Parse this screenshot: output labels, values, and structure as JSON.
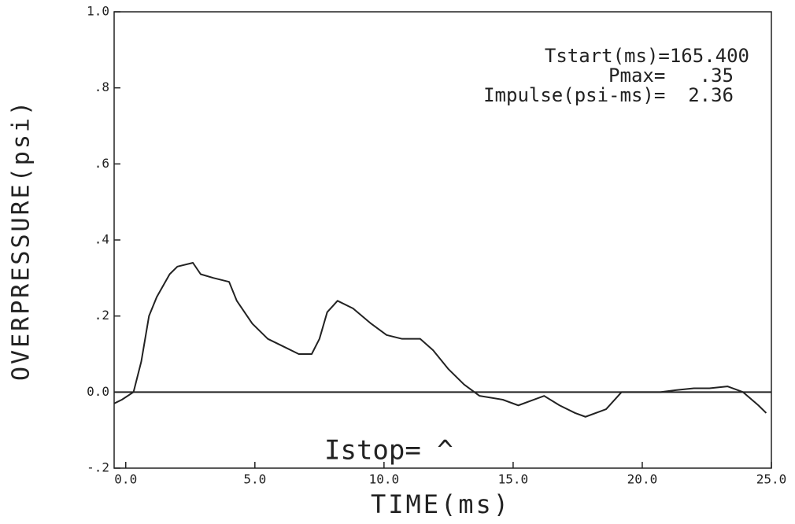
{
  "chart_data": {
    "type": "line",
    "x_label": "TIME(ms)",
    "y_label": "OVERPRESSURE(psi)",
    "annotations": [
      "Tstart(ms)=165.400",
      "Pmax=   .35",
      "Impulse(psi-ms)=  2.36",
      "Istop= ^"
    ],
    "xlim": [
      -0.45,
      25
    ],
    "xticks": [
      {
        "value": 0,
        "label": "0.0"
      },
      {
        "value": 5,
        "label": "5.0"
      },
      {
        "value": 10,
        "label": "10.0"
      },
      {
        "value": 15,
        "label": "15.0"
      },
      {
        "value": 20,
        "label": "20.0"
      },
      {
        "value": 25,
        "label": "25.0"
      }
    ],
    "ylim": [
      -0.2,
      1.0
    ],
    "yticks": [
      {
        "value": -0.2,
        "label": "-.2"
      },
      {
        "value": 0,
        "label": "0.0"
      },
      {
        "value": 0.2,
        "label": ".2"
      },
      {
        "value": 0.4,
        "label": ".4"
      },
      {
        "value": 0.6,
        "label": ".6"
      },
      {
        "value": 0.8,
        "label": ".8"
      },
      {
        "value": 1.0,
        "label": "1.0"
      }
    ],
    "color": "#222222",
    "x": [
      -0.45,
      -0.15,
      0.3,
      0.6,
      0.9,
      1.2,
      1.7,
      2.0,
      2.6,
      2.9,
      3.4,
      4.0,
      4.3,
      4.9,
      5.5,
      6.1,
      6.7,
      7.2,
      7.5,
      7.8,
      8.2,
      8.8,
      9.5,
      10.1,
      10.7,
      11.4,
      11.9,
      12.5,
      13.1,
      13.7,
      14.6,
      15.2,
      16.2,
      16.8,
      17.4,
      17.8,
      18.6,
      19.2,
      19.8,
      20.7,
      21.3,
      22.0,
      22.6,
      23.3,
      23.9,
      24.5,
      24.8
    ],
    "values": [
      -0.03,
      -0.02,
      0.0,
      0.08,
      0.2,
      0.25,
      0.31,
      0.33,
      0.34,
      0.31,
      0.3,
      0.29,
      0.24,
      0.18,
      0.14,
      0.12,
      0.1,
      0.1,
      0.14,
      0.21,
      0.24,
      0.22,
      0.18,
      0.15,
      0.14,
      0.14,
      0.11,
      0.06,
      0.02,
      -0.01,
      -0.02,
      -0.035,
      -0.01,
      -0.035,
      -0.055,
      -0.065,
      -0.045,
      0.0,
      0.0,
      0.0,
      0.005,
      0.01,
      0.01,
      0.015,
      0.0,
      -0.035,
      -0.055
    ]
  }
}
